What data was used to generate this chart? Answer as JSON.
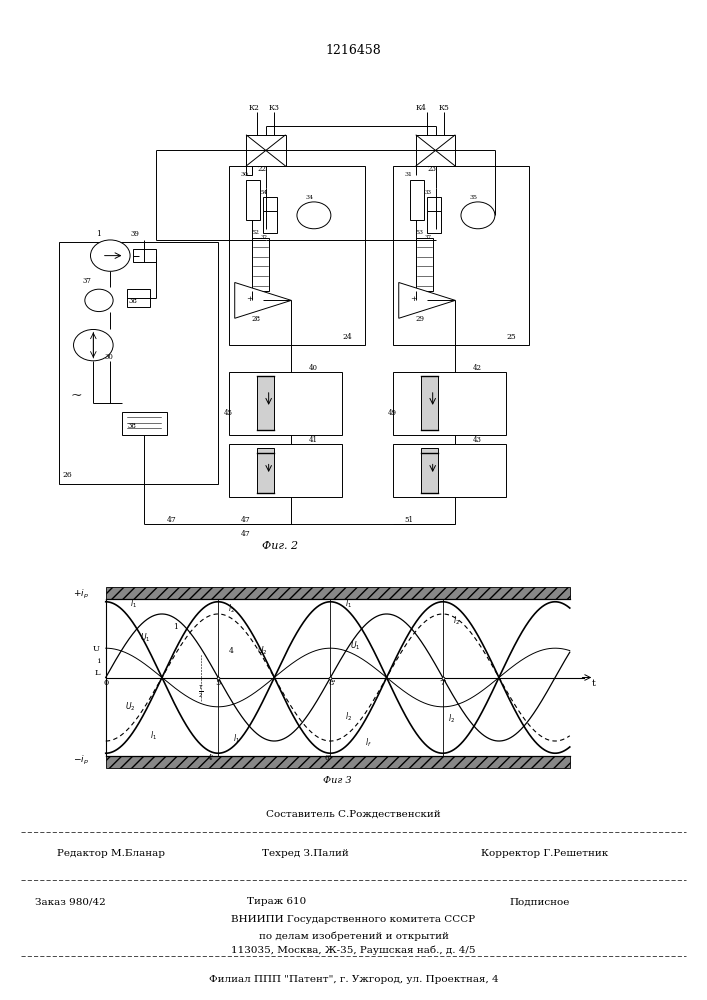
{
  "patent_number": "1216458",
  "fig2_caption": "Фиг. 2",
  "fig3_caption": "Фиг 3",
  "footer_line1": "Составитель С.Рождественский",
  "footer_line2_left": "Редактор М.Бланар",
  "footer_line2_mid": "Техред З.Палий",
  "footer_line2_right": "Корректор Г.Решетник",
  "footer_line3_left": "Заказ 980/42",
  "footer_line3_mid": "Тираж 610",
  "footer_line3_right": "Подписное",
  "footer_line4": "ВНИИПИ Государственного комитета СССР",
  "footer_line5": "по делам изобретений и открытий",
  "footer_line6": "113035, Москва, Ж-35, Раушская наб., д. 4/5",
  "footer_line7": "Филиал ППП \"Патент\", г. Ужгород, ул. Проектная, 4",
  "bg_color": "#ffffff",
  "line_color": "#000000"
}
